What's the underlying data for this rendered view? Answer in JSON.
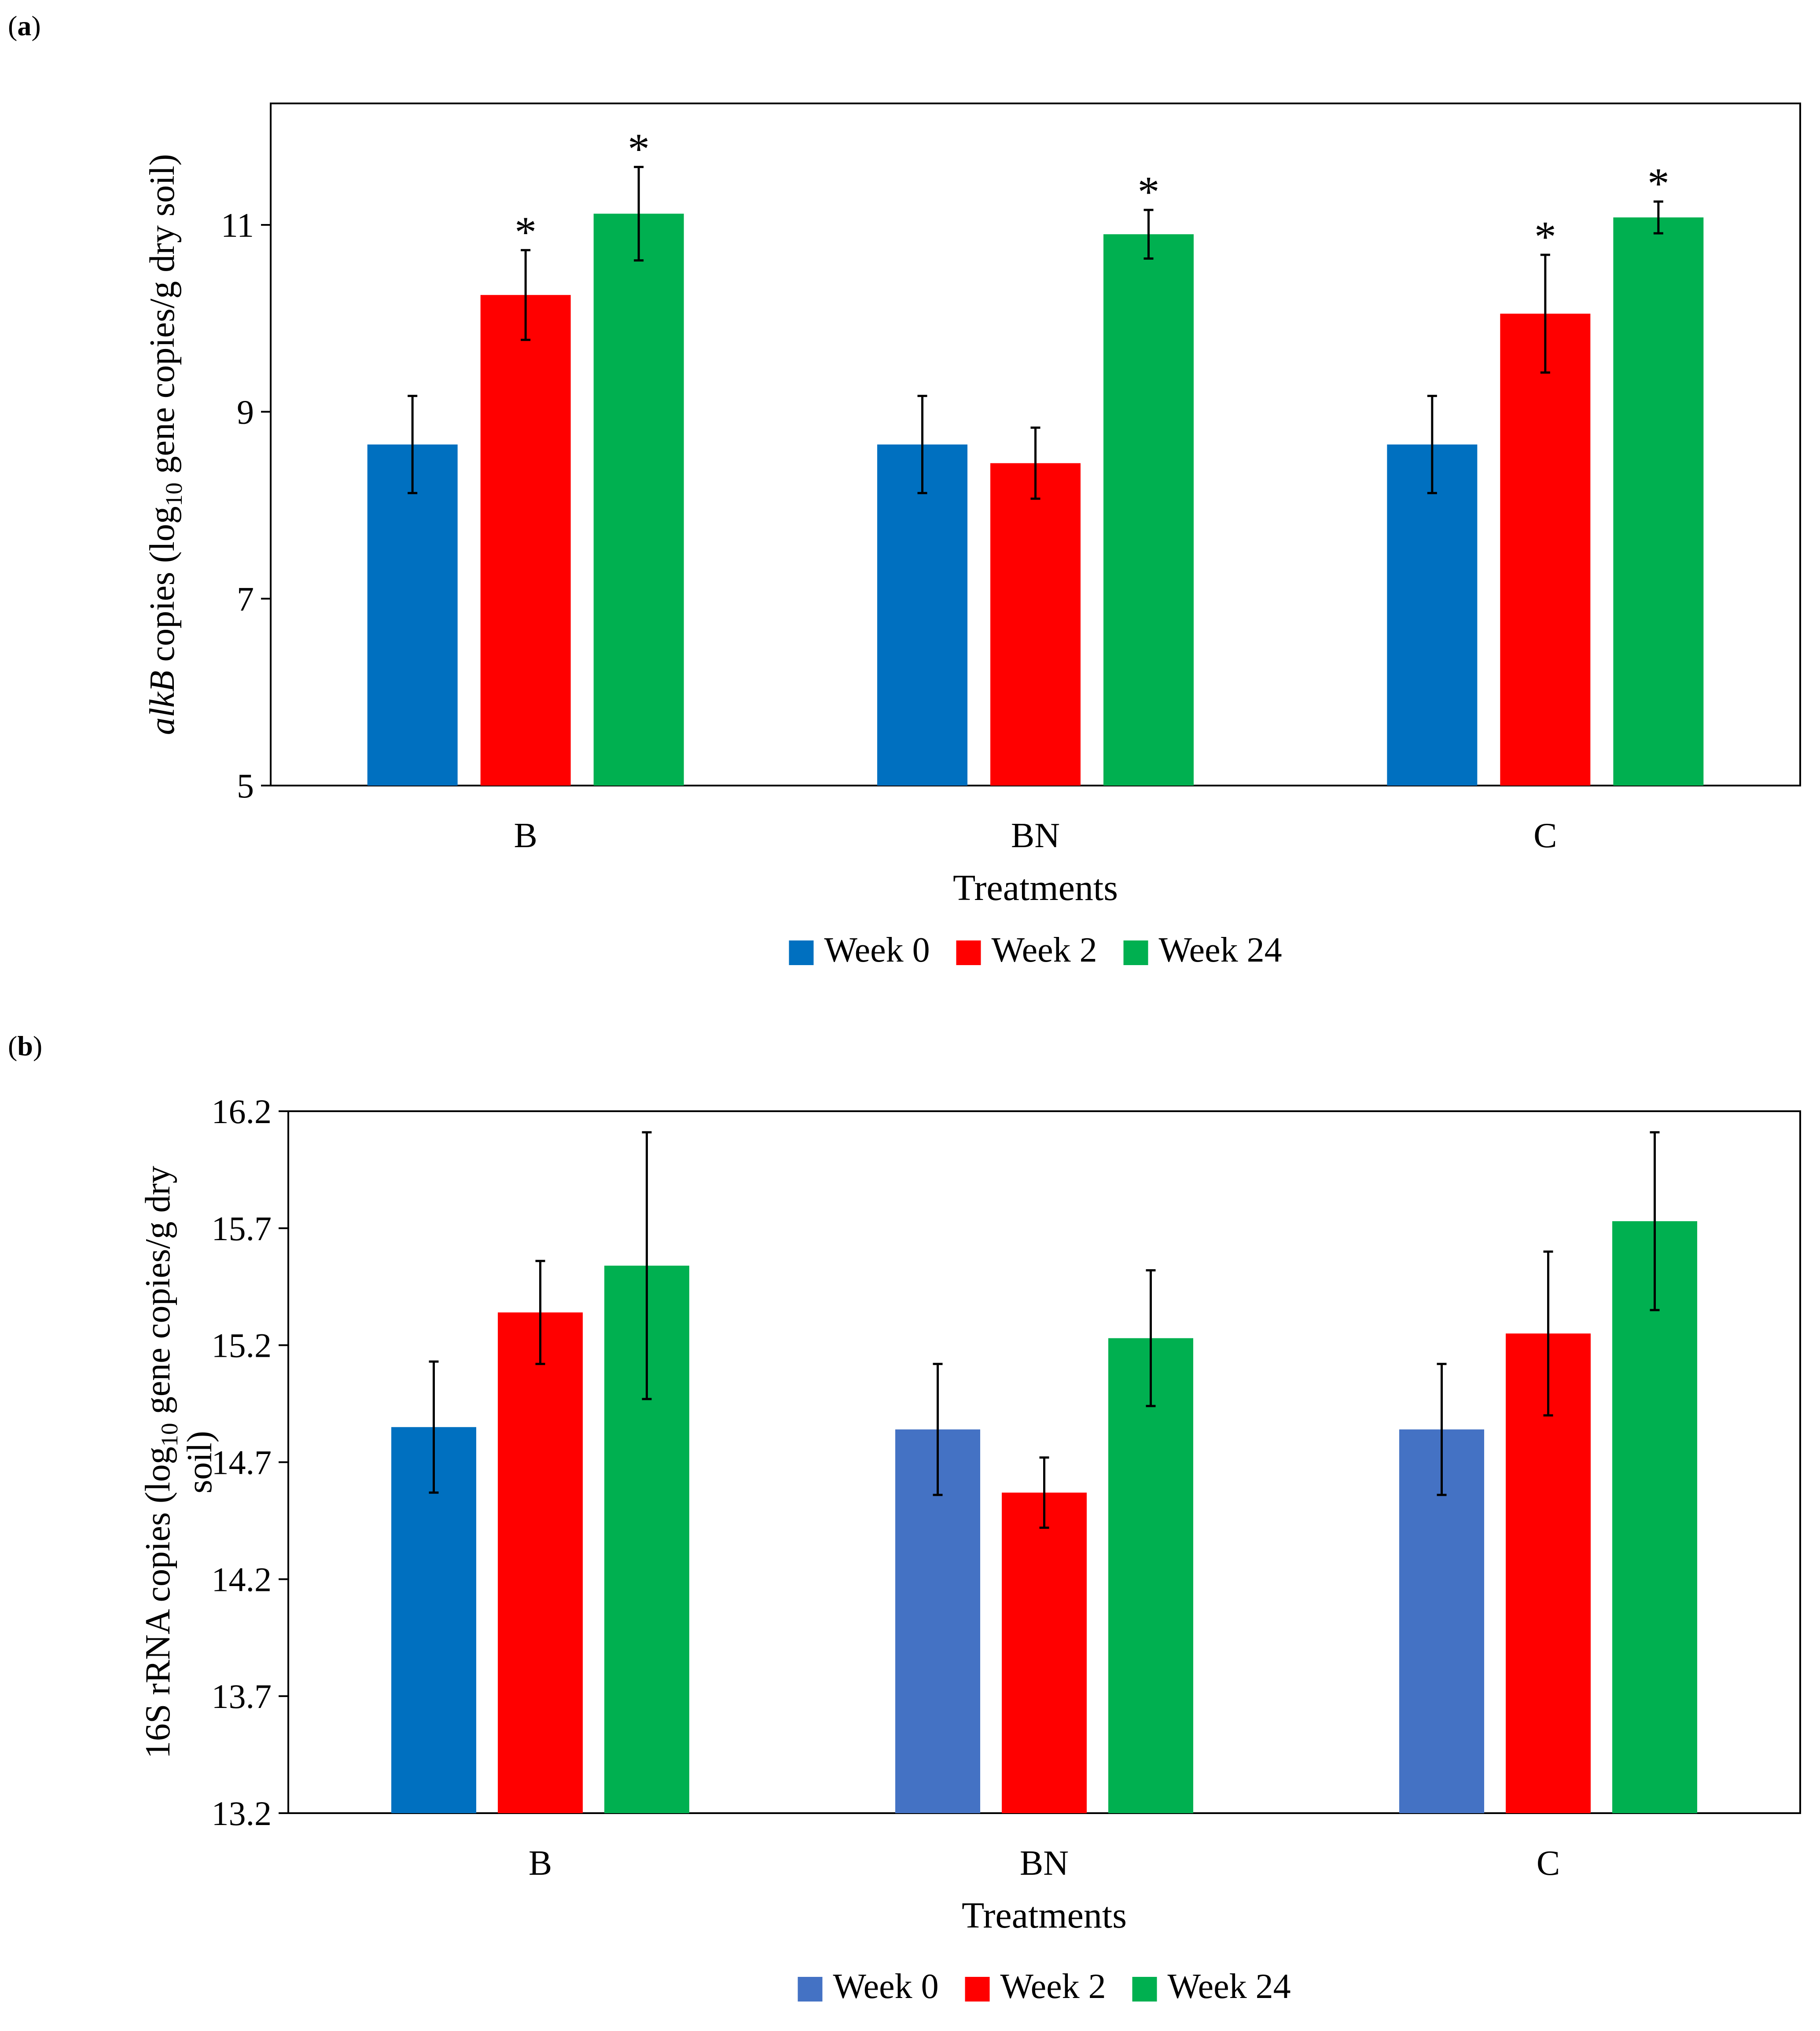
{
  "panels": {
    "a": {
      "label": "a"
    },
    "b": {
      "label": "b"
    }
  },
  "chart_data": [
    {
      "type": "bar",
      "panel": "a",
      "title": "",
      "xlabel": "Treatments",
      "ylabel": {
        "gene": "alkB",
        "pre": " copies (log",
        "sub": "10",
        "post": " gene copies/g dry soil)"
      },
      "categories": [
        "B",
        "BN",
        "C"
      ],
      "ylim": [
        5,
        12.3
      ],
      "yticks": [
        5,
        7,
        9,
        11
      ],
      "legend_position": "bottom-center",
      "series": [
        {
          "name": "Week 0",
          "colors": [
            "#0070C0",
            "#0070C0",
            "#0070C0"
          ],
          "values": [
            8.65,
            8.65,
            8.65
          ],
          "errors": [
            0.52,
            0.52,
            0.52
          ],
          "significant": [
            false,
            false,
            false
          ]
        },
        {
          "name": "Week 2",
          "colors": [
            "#FF0000",
            "#FF0000",
            "#FF0000"
          ],
          "values": [
            10.25,
            8.45,
            10.05
          ],
          "errors": [
            0.48,
            0.38,
            0.63
          ],
          "significant": [
            true,
            false,
            true
          ]
        },
        {
          "name": "Week 24",
          "colors": [
            "#00B050",
            "#00B050",
            "#00B050"
          ],
          "values": [
            11.12,
            10.9,
            11.08
          ],
          "errors": [
            0.5,
            0.26,
            0.17
          ],
          "significant": [
            true,
            true,
            true
          ]
        }
      ],
      "significance_marker": "*"
    },
    {
      "type": "bar",
      "panel": "b",
      "title": "",
      "xlabel": "Treatments",
      "ylabel": {
        "line1_pre": "16S rRNA copies (log",
        "sub": "10",
        "line1_post": " gene copies/g dry",
        "line2": "soil)"
      },
      "categories": [
        "B",
        "BN",
        "C"
      ],
      "ylim": [
        13.2,
        16.2
      ],
      "yticks": [
        13.2,
        13.7,
        14.2,
        14.7,
        15.2,
        15.7,
        16.2
      ],
      "legend_position": "bottom-center",
      "series": [
        {
          "name": "Week 0",
          "colors": [
            "#0070C0",
            "#4472C4",
            "#4472C4"
          ],
          "values": [
            14.85,
            14.84,
            14.84
          ],
          "errors": [
            0.28,
            0.28,
            0.28
          ],
          "significant": [
            false,
            false,
            false
          ]
        },
        {
          "name": "Week 2",
          "colors": [
            "#FF0000",
            "#FF0000",
            "#FF0000"
          ],
          "values": [
            15.34,
            14.57,
            15.25
          ],
          "errors": [
            0.22,
            0.15,
            0.35
          ],
          "significant": [
            false,
            false,
            false
          ]
        },
        {
          "name": "Week 24",
          "colors": [
            "#00B050",
            "#00B050",
            "#00B050"
          ],
          "values": [
            15.54,
            15.23,
            15.73
          ],
          "errors": [
            0.57,
            0.29,
            0.38
          ],
          "significant": [
            false,
            false,
            false
          ]
        }
      ],
      "legend_colors": [
        "#4472C4",
        "#FF0000",
        "#00B050"
      ],
      "significance_marker": "*"
    }
  ]
}
